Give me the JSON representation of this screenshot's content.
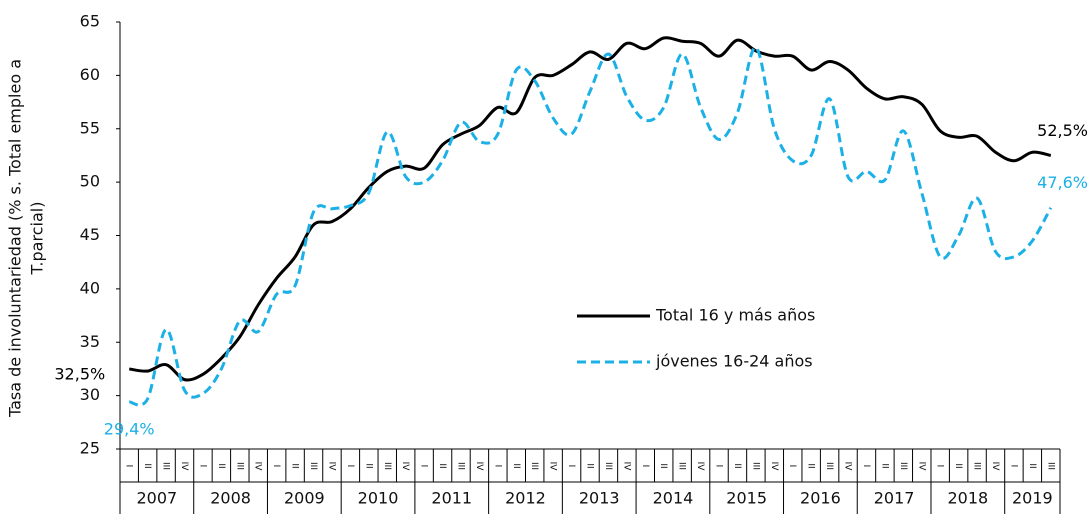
{
  "chart_data": {
    "type": "line",
    "y_label": [
      "Tasa de involuntariedad (% s. Total empleo a",
      "T.parcial)"
    ],
    "categories": [
      "I",
      "II",
      "III",
      "IV",
      "I",
      "II",
      "III",
      "IV",
      "I",
      "II",
      "III",
      "IV",
      "I",
      "II",
      "III",
      "IV",
      "I",
      "II",
      "III",
      "IV",
      "I",
      "II",
      "III",
      "IV",
      "I",
      "II",
      "III",
      "IV",
      "I",
      "II",
      "III",
      "IV",
      "I",
      "II",
      "III",
      "IV",
      "I",
      "II",
      "III",
      "IV",
      "I",
      "II",
      "III",
      "IV",
      "I",
      "II",
      "III",
      "IV",
      "I",
      "II",
      "III"
    ],
    "years": [
      "2007",
      "2008",
      "2009",
      "2010",
      "2011",
      "2012",
      "2013",
      "2014",
      "2015",
      "2016",
      "2017",
      "2018",
      "2019"
    ],
    "series": [
      {
        "name": "Total 16 y más años",
        "color": "#000000",
        "dash": false,
        "values": [
          32.5,
          32.3,
          32.9,
          31.5,
          32.0,
          33.5,
          35.5,
          38.5,
          41.0,
          43.0,
          46.0,
          46.3,
          47.5,
          49.5,
          51.0,
          51.5,
          51.3,
          53.5,
          54.5,
          55.3,
          57.0,
          56.5,
          59.8,
          60.0,
          61.0,
          62.2,
          61.5,
          63.0,
          62.5,
          63.5,
          63.2,
          63.0,
          61.8,
          63.3,
          62.3,
          61.8,
          61.8,
          60.5,
          61.3,
          60.5,
          58.8,
          57.8,
          58.0,
          57.3,
          54.8,
          54.2,
          54.3,
          52.8,
          52.0,
          52.8,
          52.5
        ],
        "value_labels": [
          "32,5%",
          null,
          null,
          null,
          null,
          null,
          null,
          null,
          null,
          null,
          null,
          null,
          null,
          null,
          null,
          null,
          null,
          null,
          null,
          null,
          null,
          null,
          null,
          null,
          null,
          null,
          null,
          null,
          null,
          null,
          null,
          null,
          null,
          null,
          null,
          null,
          null,
          null,
          null,
          null,
          null,
          null,
          null,
          null,
          null,
          null,
          null,
          null,
          null,
          null,
          "52,5%"
        ]
      },
      {
        "name": "jóvenes 16-24 años",
        "color": "#1bb0e6",
        "dash": true,
        "values": [
          29.4,
          29.7,
          36.2,
          30.5,
          30.2,
          32.5,
          37.0,
          36.0,
          39.5,
          40.3,
          47.2,
          47.5,
          47.8,
          49.0,
          54.7,
          50.5,
          50.0,
          52.0,
          55.6,
          53.8,
          54.5,
          60.5,
          59.5,
          56.0,
          54.5,
          58.5,
          62.0,
          58.0,
          55.8,
          57.0,
          62.0,
          57.0,
          54.0,
          56.5,
          62.6,
          55.0,
          52.0,
          52.5,
          57.8,
          50.5,
          51.0,
          50.2,
          54.8,
          49.0,
          43.0,
          45.0,
          48.5,
          43.5,
          43.0,
          44.5,
          47.6
        ],
        "value_labels": [
          "29,4%",
          null,
          null,
          null,
          null,
          null,
          null,
          null,
          null,
          null,
          null,
          null,
          null,
          null,
          null,
          null,
          null,
          null,
          null,
          null,
          null,
          null,
          null,
          null,
          null,
          null,
          null,
          null,
          null,
          null,
          null,
          null,
          null,
          null,
          null,
          null,
          null,
          null,
          null,
          null,
          null,
          null,
          null,
          null,
          null,
          null,
          null,
          null,
          null,
          null,
          "47,6%"
        ]
      }
    ],
    "ylim": [
      25,
      65
    ],
    "yticks": [
      25,
      30,
      35,
      40,
      45,
      50,
      55,
      60,
      65
    ],
    "grid": false
  }
}
